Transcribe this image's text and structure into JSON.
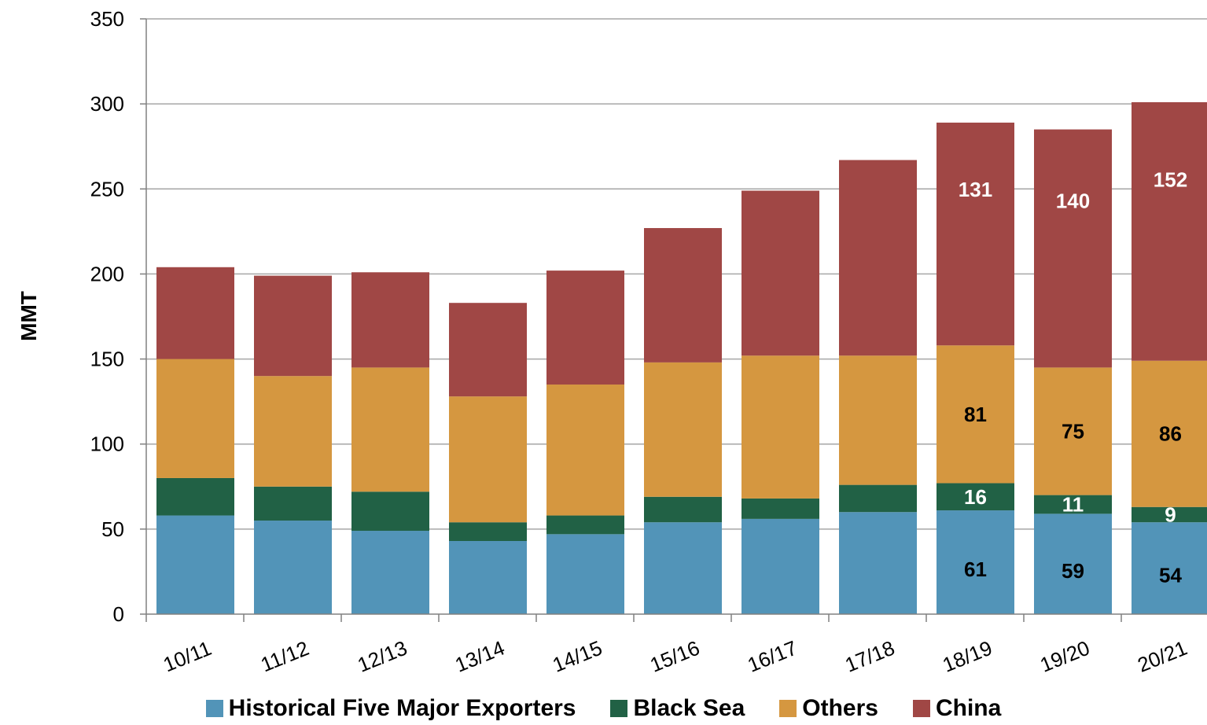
{
  "chart_data": {
    "type": "bar",
    "stacked": true,
    "title": "",
    "xlabel": "",
    "ylabel": "MMT",
    "ylim": [
      0,
      350
    ],
    "yticks": [
      0,
      50,
      100,
      150,
      200,
      250,
      300,
      350
    ],
    "grid": true,
    "legend_position": "bottom",
    "categories": [
      "10/11",
      "11/12",
      "12/13",
      "13/14",
      "14/15",
      "15/16",
      "16/17",
      "17/18",
      "18/19",
      "19/20",
      "20/21"
    ],
    "series": [
      {
        "name": "Historical Five Major Exporters",
        "color": "#5294b8",
        "values": [
          58,
          55,
          49,
          43,
          47,
          54,
          56,
          60,
          61,
          59,
          54
        ]
      },
      {
        "name": "Black Sea",
        "color": "#216145",
        "values": [
          22,
          20,
          23,
          11,
          11,
          15,
          12,
          16,
          16,
          11,
          9
        ]
      },
      {
        "name": "Others",
        "color": "#d59740",
        "values": [
          70,
          65,
          73,
          74,
          77,
          79,
          84,
          76,
          81,
          75,
          86
        ]
      },
      {
        "name": "China",
        "color": "#a04745",
        "values": [
          54,
          59,
          56,
          55,
          67,
          79,
          97,
          115,
          131,
          140,
          152
        ]
      }
    ],
    "data_labels": [
      {
        "category": "18/19",
        "series": 0,
        "text": "61"
      },
      {
        "category": "18/19",
        "series": 1,
        "text": "16"
      },
      {
        "category": "18/19",
        "series": 2,
        "text": "81"
      },
      {
        "category": "18/19",
        "series": 3,
        "text": "131"
      },
      {
        "category": "19/20",
        "series": 0,
        "text": "59"
      },
      {
        "category": "19/20",
        "series": 1,
        "text": "11"
      },
      {
        "category": "19/20",
        "series": 2,
        "text": "75"
      },
      {
        "category": "19/20",
        "series": 3,
        "text": "140"
      },
      {
        "category": "20/21",
        "series": 0,
        "text": "54"
      },
      {
        "category": "20/21",
        "series": 1,
        "text": "9"
      },
      {
        "category": "20/21",
        "series": 2,
        "text": "86"
      },
      {
        "category": "20/21",
        "series": 3,
        "text": "152"
      }
    ]
  }
}
